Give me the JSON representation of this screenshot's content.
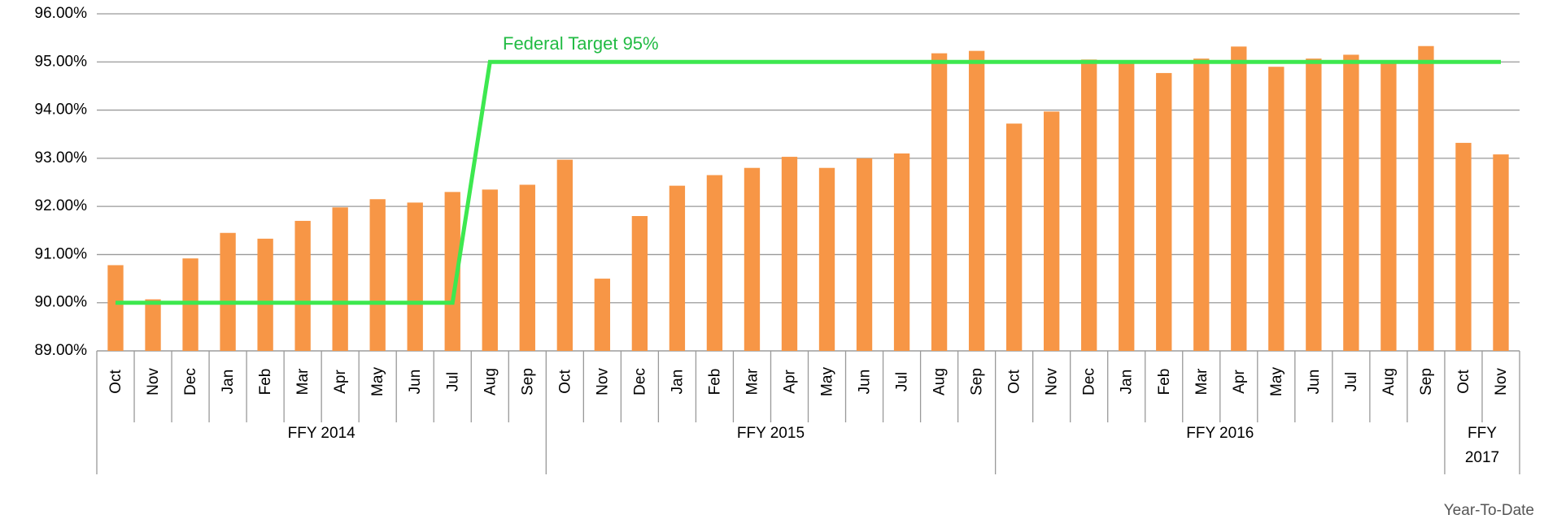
{
  "chart_data": {
    "type": "bar",
    "annotation": "Federal Target 95%",
    "footnote": "Year-To-Date",
    "groups": [
      {
        "label": "FFY 2014",
        "categories": [
          "Oct",
          "Nov",
          "Dec",
          "Jan",
          "Feb",
          "Mar",
          "Apr",
          "May",
          "Jun",
          "Jul",
          "Aug",
          "Sep"
        ]
      },
      {
        "label": "FFY 2015",
        "categories": [
          "Oct",
          "Nov",
          "Dec",
          "Jan",
          "Feb",
          "Mar",
          "Apr",
          "May",
          "Jun",
          "Jul",
          "Aug",
          "Sep"
        ]
      },
      {
        "label": "FFY 2016",
        "categories": [
          "Oct",
          "Nov",
          "Dec",
          "Jan",
          "Feb",
          "Mar",
          "Apr",
          "May",
          "Jun",
          "Jul",
          "Aug",
          "Sep"
        ]
      },
      {
        "label": "FFY 2017",
        "categories": [
          "Oct",
          "Nov"
        ]
      }
    ],
    "values": [
      90.78,
      90.07,
      90.92,
      91.45,
      91.33,
      91.7,
      91.98,
      92.15,
      92.08,
      92.3,
      92.35,
      92.45,
      92.97,
      90.5,
      91.8,
      92.43,
      92.65,
      92.8,
      93.03,
      92.8,
      93.0,
      93.1,
      95.18,
      95.23,
      93.72,
      93.97,
      95.05,
      95.0,
      94.77,
      95.07,
      95.32,
      94.9,
      95.07,
      95.15,
      95.0,
      95.33,
      93.32,
      93.08
    ],
    "color": "#f79646",
    "target": {
      "color": "#3de84f",
      "values": [
        90,
        90,
        90,
        90,
        90,
        90,
        90,
        90,
        90,
        90,
        95,
        95,
        95,
        95,
        95,
        95,
        95,
        95,
        95,
        95,
        95,
        95,
        95,
        95,
        95,
        95,
        95,
        95,
        95,
        95,
        95,
        95,
        95,
        95,
        95,
        95,
        95,
        95
      ]
    },
    "ylim": [
      89,
      96
    ],
    "yticks": [
      {
        "value": 89,
        "label": "89.00%"
      },
      {
        "value": 90,
        "label": "90.00%"
      },
      {
        "value": 91,
        "label": "91.00%"
      },
      {
        "value": 92,
        "label": "92.00%"
      },
      {
        "value": 93,
        "label": "93.00%"
      },
      {
        "value": 94,
        "label": "94.00%"
      },
      {
        "value": 95,
        "label": "95.00%"
      },
      {
        "value": 96,
        "label": "96.00%"
      }
    ],
    "grid": true
  }
}
